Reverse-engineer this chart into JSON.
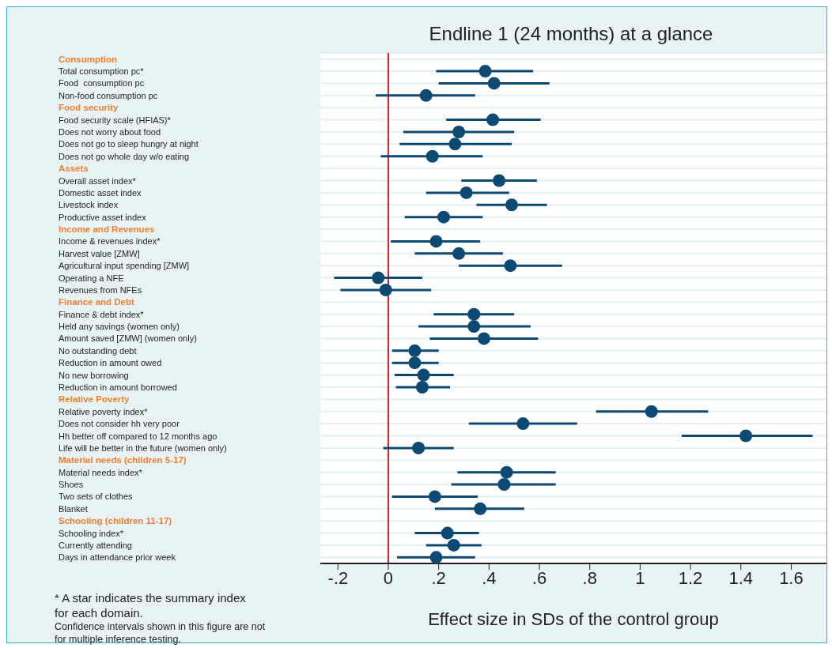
{
  "chart_data": {
    "type": "scatter",
    "orientation": "horizontal",
    "title": "Endline 1 (24 months) at a glance",
    "xlabel": "Effect size in SDs of the control group",
    "categories": [
      "Consumption",
      "Total consumption pc*",
      "Food  consumption pc",
      "Non-food consumption pc",
      "Food security",
      "Food security scale (HFIAS)*",
      "Does not worry about food",
      "Does not go to sleep hungry at night",
      "Does not go whole day w/o eating",
      "Assets",
      "Overall asset index*",
      "Domestic asset index",
      "Livestock index",
      "Productive asset index",
      "Income and Revenues",
      "Income & revenues index*",
      "Harvest value [ZMW]",
      "Agricultural input spending [ZMW]",
      "Operating a NFE",
      "Revenues from NFEs",
      "Finance and Debt",
      "Finance & debt index*",
      "Held any savings (women only)",
      "Amount saved [ZMW] (women only)",
      "No outstanding debt",
      "Reduction in amount owed",
      "No new borrowing",
      "Reduction in amount borrowed",
      "Relative Poverty",
      "Relative poverty index*",
      "Does not consider hh very poor",
      "Hh better off compared to 12 months ago",
      "Life will be better in the future (women only)",
      "Material needs (children 5-17)",
      "Material needs index*",
      "Shoes",
      "Two sets of clothes",
      "Blanket",
      "Schooling (children 11-17)",
      "Schooling index*",
      "Currently attending",
      "Days in attendance prior week"
    ],
    "series": [
      {
        "color": "#0d4a73",
        "values": [
          null,
          0.385,
          0.42,
          0.15,
          null,
          0.415,
          0.28,
          0.265,
          0.175,
          null,
          0.44,
          0.31,
          0.49,
          0.22,
          null,
          0.19,
          0.28,
          0.485,
          -0.04,
          -0.01,
          null,
          0.34,
          0.34,
          0.38,
          0.105,
          0.105,
          0.14,
          0.135,
          null,
          1.045,
          0.535,
          1.42,
          0.12,
          null,
          0.47,
          0.46,
          0.185,
          0.365,
          null,
          0.235,
          0.26,
          0.19
        ],
        "errors": [
          null,
          [
            0.19,
            0.575
          ],
          [
            0.2,
            0.64
          ],
          [
            -0.05,
            0.345
          ],
          null,
          [
            0.23,
            0.605
          ],
          [
            0.06,
            0.5
          ],
          [
            0.045,
            0.49
          ],
          [
            -0.03,
            0.375
          ],
          null,
          [
            0.29,
            0.59
          ],
          [
            0.15,
            0.48
          ],
          [
            0.35,
            0.63
          ],
          [
            0.065,
            0.375
          ],
          null,
          [
            0.01,
            0.365
          ],
          [
            0.105,
            0.455
          ],
          [
            0.28,
            0.69
          ],
          [
            -0.215,
            0.135
          ],
          [
            -0.19,
            0.17
          ],
          null,
          [
            0.18,
            0.5
          ],
          [
            0.12,
            0.565
          ],
          [
            0.165,
            0.595
          ],
          [
            0.015,
            0.2
          ],
          [
            0.015,
            0.2
          ],
          [
            0.025,
            0.26
          ],
          [
            0.03,
            0.245
          ],
          null,
          [
            0.825,
            1.27
          ],
          [
            0.32,
            0.75
          ],
          [
            1.165,
            1.685
          ],
          [
            -0.02,
            0.26
          ],
          null,
          [
            0.275,
            0.665
          ],
          [
            0.25,
            0.665
          ],
          [
            0.015,
            0.355
          ],
          [
            0.185,
            0.54
          ],
          null,
          [
            0.105,
            0.36
          ],
          [
            0.15,
            0.37
          ],
          [
            0.035,
            0.345
          ]
        ]
      }
    ],
    "xlim": [
      -0.27,
      1.74
    ],
    "xticks": [
      {
        "value": -0.2,
        "label": "-.2"
      },
      0,
      {
        "value": 0.2,
        "label": ".2"
      },
      {
        "value": 0.4,
        "label": ".4"
      },
      {
        "value": 0.6,
        "label": ".6"
      },
      {
        "value": 0.8,
        "label": ".8"
      },
      1,
      1.2,
      1.4,
      1.6
    ],
    "ref_lines": [
      {
        "axis": "x",
        "value": 0,
        "color": "#d71f2a"
      }
    ],
    "grid": "y",
    "marker": "circle",
    "legend": false,
    "annotations": [
      "* A star indicates the summary index for each domain.",
      "Confidence intervals shown in this figure are not for multiple inference testing."
    ]
  }
}
